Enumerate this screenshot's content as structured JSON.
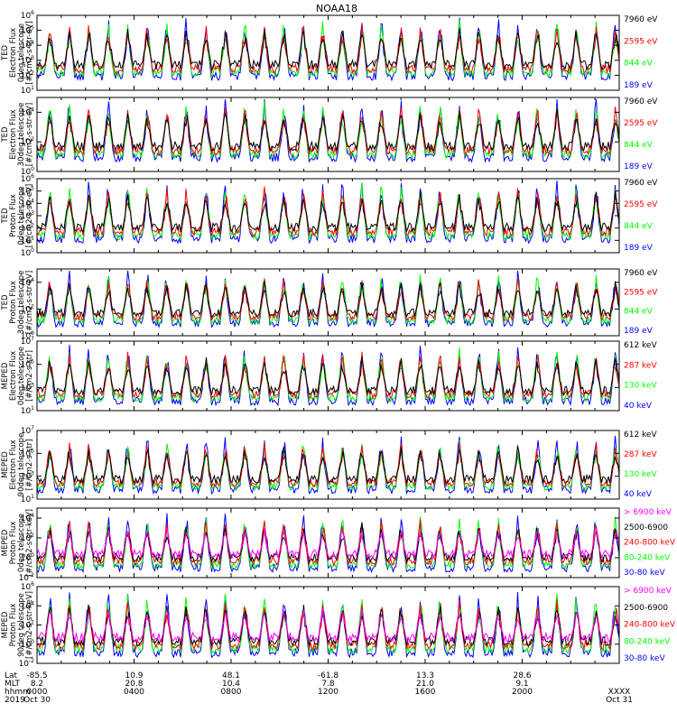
{
  "title": "NOAA18",
  "colors": {
    "black": "#000000",
    "blue": "#0000ff",
    "red": "#ff0000",
    "green": "#00ff00",
    "magenta": "#ff00ff"
  },
  "chart_data": [
    {
      "type": "line",
      "instrument": "TED",
      "ylabel_lines": [
        "TED",
        "Electron Flux",
        "0deg telescope",
        "[#/cm2-s-str-eV]"
      ],
      "yscale": "log",
      "ylim_exp": [
        1,
        6
      ],
      "tick_exps": [
        1,
        2,
        3,
        4,
        5,
        6
      ],
      "series": [
        {
          "name": "7960 eV",
          "color": "black"
        },
        {
          "name": "2595 eV",
          "color": "red"
        },
        {
          "name": "844 eV",
          "color": "green"
        },
        {
          "name": "189 eV",
          "color": "blue"
        }
      ]
    },
    {
      "type": "line",
      "instrument": "TED",
      "ylabel_lines": [
        "TED",
        "Electron Flux",
        "30deg telescope",
        "[#/cm2-s-str-eV]"
      ],
      "yscale": "log",
      "ylim_exp": [
        0,
        5
      ],
      "tick_exps": [
        0,
        2,
        4
      ],
      "series": [
        {
          "name": "7960 eV",
          "color": "black"
        },
        {
          "name": "2595 eV",
          "color": "red"
        },
        {
          "name": "844 eV",
          "color": "green"
        },
        {
          "name": "189 eV",
          "color": "blue"
        }
      ]
    },
    {
      "type": "line",
      "instrument": "TED",
      "ylabel_lines": [
        "TED",
        "Proton Flux",
        "0deg telescope",
        "[#/cm2-s-str-eV]"
      ],
      "yscale": "log",
      "ylim_exp": [
        0,
        6
      ],
      "tick_exps": [
        0,
        1,
        2,
        3,
        4,
        5,
        6
      ],
      "series": [
        {
          "name": "7960 eV",
          "color": "black"
        },
        {
          "name": "2595 eV",
          "color": "red"
        },
        {
          "name": "844 eV",
          "color": "green"
        },
        {
          "name": "189 eV",
          "color": "blue"
        }
      ]
    },
    {
      "type": "line",
      "instrument": "TED",
      "ylabel_lines": [
        "TED",
        "Proton Flux",
        "30deg telescope",
        "[#/cm2-s-str-eV]"
      ],
      "yscale": "log",
      "ylim_exp": [
        0,
        5
      ],
      "tick_exps": [
        0,
        2,
        4
      ],
      "series": [
        {
          "name": "7960 eV",
          "color": "black"
        },
        {
          "name": "2595 eV",
          "color": "red"
        },
        {
          "name": "844 eV",
          "color": "green"
        },
        {
          "name": "189 eV",
          "color": "blue"
        }
      ]
    },
    {
      "type": "line",
      "instrument": "MEPED",
      "ylabel_lines": [
        "MEPED",
        "Electron Flux",
        "0deg telescope",
        "[#/cm2-s-str]"
      ],
      "yscale": "log",
      "ylim_exp": [
        1,
        7
      ],
      "tick_exps": [
        1,
        3,
        5,
        7
      ],
      "series": [
        {
          "name": "612 keV",
          "color": "black"
        },
        {
          "name": "287 keV",
          "color": "red"
        },
        {
          "name": "130 keV",
          "color": "green"
        },
        {
          "name": "40 keV",
          "color": "blue"
        }
      ]
    },
    {
      "type": "line",
      "instrument": "MEPED",
      "ylabel_lines": [
        "MEPED",
        "Electron Flux",
        "90deg telescope",
        "[#/cm2-s-str]"
      ],
      "yscale": "log",
      "ylim_exp": [
        1,
        7
      ],
      "tick_exps": [
        1,
        3,
        5,
        7
      ],
      "series": [
        {
          "name": "612 keV",
          "color": "black"
        },
        {
          "name": "287 keV",
          "color": "red"
        },
        {
          "name": "130 keV",
          "color": "green"
        },
        {
          "name": "40 keV",
          "color": "blue"
        }
      ]
    },
    {
      "type": "line",
      "instrument": "MEPED",
      "ylabel_lines": [
        "MEPED",
        "Proton Flux",
        "0deg telescope",
        "[#/cm2-s-str-keV]"
      ],
      "yscale": "log",
      "ylim_exp": [
        -2,
        5
      ],
      "tick_exps": [
        -2,
        0,
        2,
        4
      ],
      "series": [
        {
          "name": "> 6900 keV",
          "color": "magenta"
        },
        {
          "name": "2500-6900",
          "color": "black"
        },
        {
          "name": "240-800 keV",
          "color": "red"
        },
        {
          "name": "80-240 keV",
          "color": "green"
        },
        {
          "name": "30-80 keV",
          "color": "blue"
        }
      ]
    },
    {
      "type": "line",
      "instrument": "MEPED",
      "ylabel_lines": [
        "MEPED",
        "Proton Flux",
        "90deg telescope",
        "[#/cm2-s-str-keV]"
      ],
      "yscale": "log",
      "ylim_exp": [
        -2,
        6
      ],
      "tick_exps": [
        -2,
        0,
        2,
        4,
        6
      ],
      "series": [
        {
          "name": "> 6900 keV",
          "color": "magenta"
        },
        {
          "name": "2500-6900",
          "color": "black"
        },
        {
          "name": "240-800 keV",
          "color": "red"
        },
        {
          "name": "80-240 keV",
          "color": "green"
        },
        {
          "name": "30-80 keV",
          "color": "blue"
        }
      ]
    }
  ],
  "x_axis": {
    "row_labels": [
      "Lat",
      "MLT",
      "hhmm",
      "2019"
    ],
    "ticks": [
      {
        "lat": "-85.5",
        "mlt": "8.2",
        "hhmm": "0000",
        "date": "Oct 30"
      },
      {
        "lat": "10.9",
        "mlt": "20.8",
        "hhmm": "0400",
        "date": ""
      },
      {
        "lat": "48.1",
        "mlt": "10.4",
        "hhmm": "0800",
        "date": ""
      },
      {
        "lat": "-61.8",
        "mlt": "7.8",
        "hhmm": "1200",
        "date": ""
      },
      {
        "lat": "13.3",
        "mlt": "21.0",
        "hhmm": "1600",
        "date": ""
      },
      {
        "lat": "28.6",
        "mlt": "9.1",
        "hhmm": "2000",
        "date": ""
      },
      {
        "lat": "",
        "mlt": "",
        "hhmm": "XXXX",
        "date": "Oct 31"
      }
    ]
  }
}
